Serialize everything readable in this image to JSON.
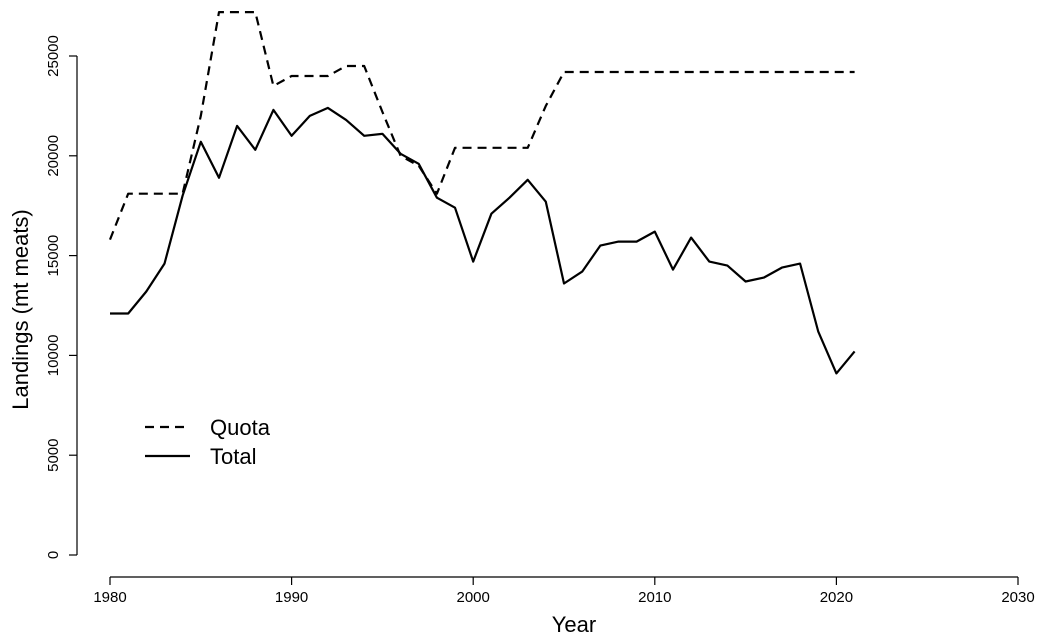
{
  "chart_data": {
    "type": "line",
    "title": "",
    "xlabel": "Year",
    "ylabel": "Landings (mt meats)",
    "xlim": [
      1980,
      2030
    ],
    "ylim": [
      0,
      25000
    ],
    "xticks": [
      1980,
      1990,
      2000,
      2010,
      2020,
      2030
    ],
    "yticks": [
      0,
      5000,
      10000,
      15000,
      20000,
      25000
    ],
    "grid": false,
    "legend": "left",
    "series": [
      {
        "name": "Quota",
        "style": "dashed",
        "color": "#000000",
        "x": [
          1980,
          1981,
          1982,
          1983,
          1984,
          1985,
          1986,
          1987,
          1988,
          1989,
          1990,
          1991,
          1992,
          1993,
          1994,
          1995,
          1996,
          1997,
          1998,
          1999,
          2000,
          2001,
          2002,
          2003,
          2004,
          2005,
          2006,
          2007,
          2008,
          2009,
          2010,
          2011,
          2012,
          2013,
          2014,
          2015,
          2016,
          2017,
          2018,
          2019,
          2020,
          2021
        ],
        "values": [
          15800,
          18100,
          18100,
          18100,
          18100,
          22000,
          27200,
          27200,
          27200,
          23500,
          24000,
          24000,
          24000,
          24500,
          24500,
          22200,
          20000,
          19500,
          18100,
          20400,
          20400,
          20400,
          20400,
          20400,
          22500,
          24200,
          24200,
          24200,
          24200,
          24200,
          24200,
          24200,
          24200,
          24200,
          24200,
          24200,
          24200,
          24200,
          24200,
          24200,
          24200,
          24200
        ]
      },
      {
        "name": "Total",
        "style": "solid",
        "color": "#000000",
        "x": [
          1980,
          1981,
          1982,
          1983,
          1984,
          1985,
          1986,
          1987,
          1988,
          1989,
          1990,
          1991,
          1992,
          1993,
          1994,
          1995,
          1996,
          1997,
          1998,
          1999,
          2000,
          2001,
          2002,
          2003,
          2004,
          2005,
          2006,
          2007,
          2008,
          2009,
          2010,
          2011,
          2012,
          2013,
          2014,
          2015,
          2016,
          2017,
          2018,
          2019,
          2020,
          2021
        ],
        "values": [
          12100,
          12100,
          13200,
          14600,
          18000,
          20700,
          18900,
          21500,
          20300,
          22300,
          21000,
          22000,
          22400,
          21800,
          21000,
          21100,
          20100,
          19600,
          17900,
          17400,
          14700,
          17100,
          17900,
          18800,
          17700,
          13600,
          14200,
          15500,
          15700,
          15700,
          16200,
          14300,
          15900,
          14700,
          14500,
          13700,
          13900,
          14400,
          14600,
          11200,
          9100,
          10200
        ]
      }
    ]
  }
}
